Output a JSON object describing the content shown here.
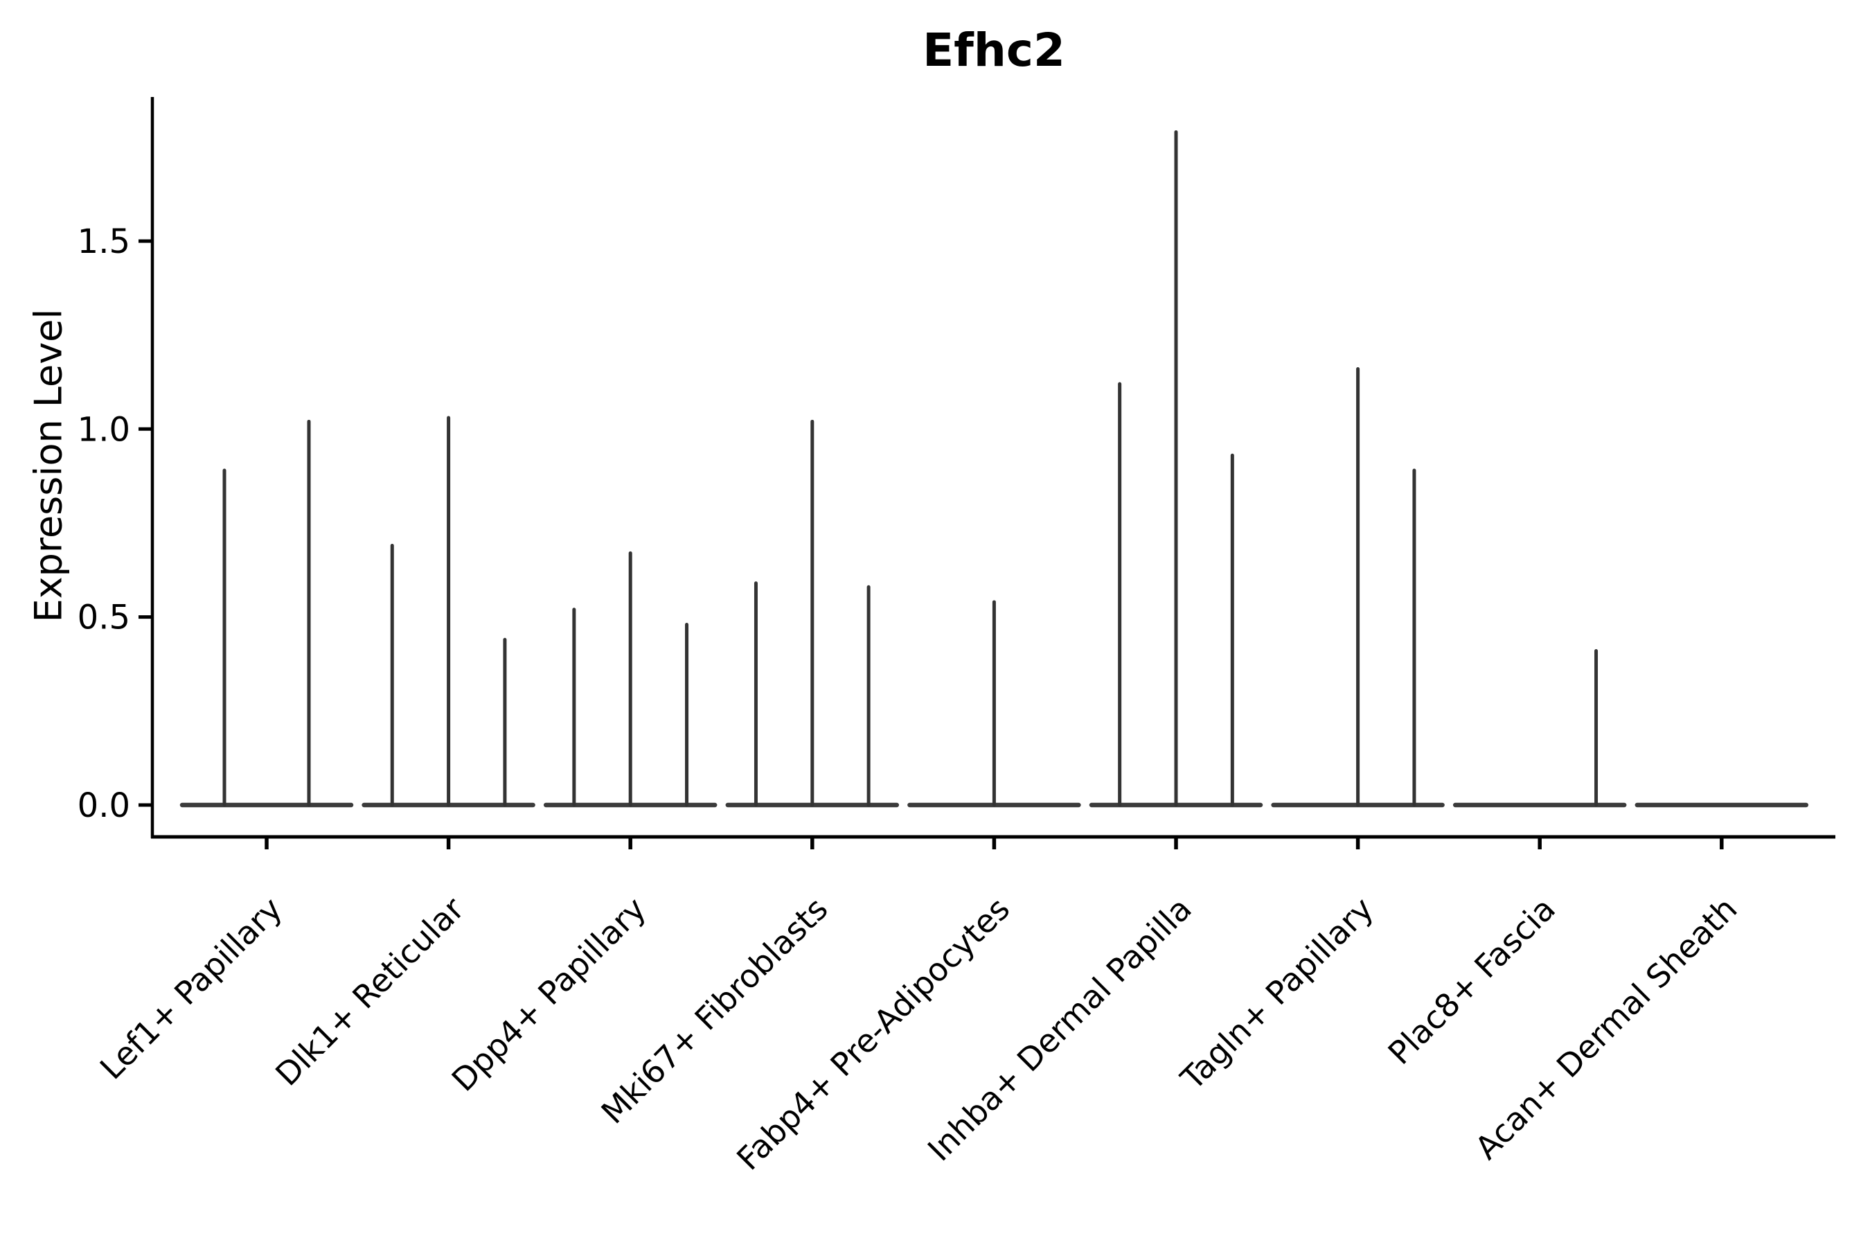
{
  "chart_data": {
    "type": "violin",
    "title": "Efhc2",
    "ylabel": "Expression Level",
    "xlabel": "",
    "grid": false,
    "legend_position": "none",
    "ylim": [
      -0.08,
      1.88
    ],
    "yticks": [
      "0.0",
      "0.5",
      "1.0",
      "1.5"
    ],
    "ytick_values": [
      0.0,
      0.5,
      1.0,
      1.5
    ],
    "categories": [
      "Lef1+ Papillary",
      "Dlk1+ Reticular",
      "Dpp4+ Papillary",
      "Mki67+ Fibroblasts",
      "Fabp4+ Pre-Adipocytes",
      "Inhba+ Dermal Papilla",
      "Tagln+ Papillary",
      "Plac8+ Fascia",
      "Acan+ Dermal Sheath"
    ],
    "groups": [
      {
        "category": "Lef1+ Papillary",
        "violin_peaks": [
          0.89,
          1.02
        ]
      },
      {
        "category": "Dlk1+ Reticular",
        "violin_peaks": [
          0.69,
          1.03,
          0.44
        ]
      },
      {
        "category": "Dpp4+ Papillary",
        "violin_peaks": [
          0.52,
          0.67,
          0.48
        ]
      },
      {
        "category": "Mki67+ Fibroblasts",
        "violin_peaks": [
          0.59,
          1.02,
          0.58
        ]
      },
      {
        "category": "Fabp4+ Pre-Adipocytes",
        "violin_peaks": [
          null,
          0.54,
          null
        ]
      },
      {
        "category": "Inhba+ Dermal Papilla",
        "violin_peaks": [
          1.12,
          1.79,
          0.93
        ]
      },
      {
        "category": "Tagln+ Papillary",
        "violin_peaks": [
          null,
          1.16,
          0.89
        ]
      },
      {
        "category": "Plac8+ Fascia",
        "violin_peaks": [
          null,
          null,
          0.41
        ]
      },
      {
        "category": "Acan+ Dermal Sheath",
        "violin_peaks": [
          null,
          null,
          null
        ]
      }
    ],
    "colors": {
      "axis": "#000000",
      "violin": "#333333",
      "violin_base": "#3b3b3b",
      "background": "#ffffff"
    }
  }
}
